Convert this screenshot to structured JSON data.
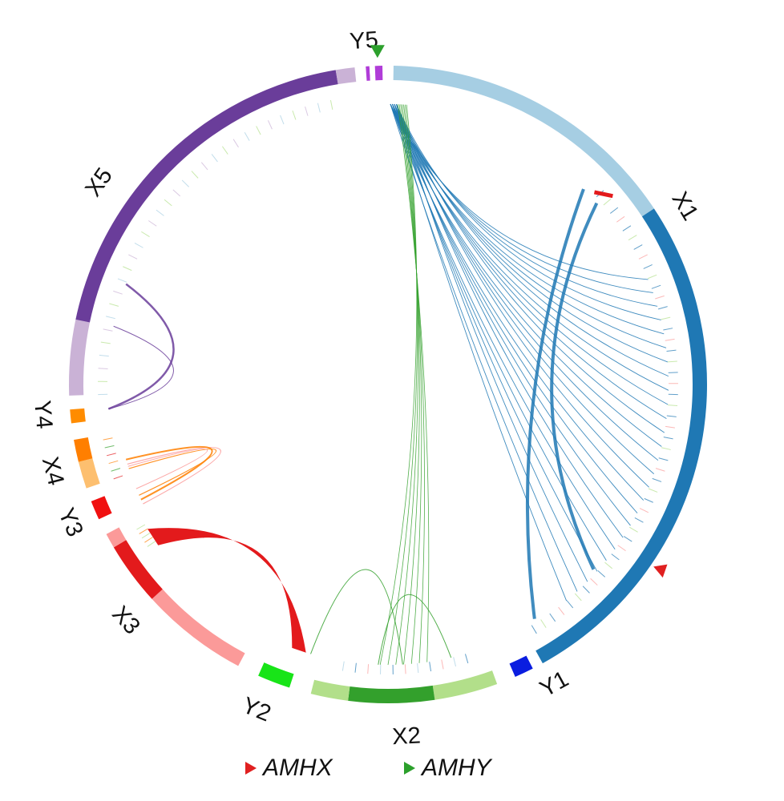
{
  "segments": [
    {
      "id": "X1",
      "label": "X1",
      "parts": [
        {
          "color": "#a6cee3",
          "frac": 0.37
        },
        {
          "color": "#1f78b4",
          "frac": 0.63
        }
      ]
    },
    {
      "id": "Y1",
      "label": "Y1",
      "parts": [
        {
          "color": "#0a1de0",
          "frac": 1
        }
      ]
    },
    {
      "id": "X2",
      "label": "X2",
      "parts": [
        {
          "color": "#b2df8a",
          "frac": 0.34
        },
        {
          "color": "#33a02c",
          "frac": 0.46
        },
        {
          "color": "#b2df8a",
          "frac": 0.2
        }
      ]
    },
    {
      "id": "Y2",
      "label": "Y2",
      "parts": [
        {
          "color": "#18e418",
          "frac": 1
        }
      ]
    },
    {
      "id": "X3",
      "label": "X3",
      "parts": [
        {
          "color": "#fb9a99",
          "frac": 0.58
        },
        {
          "color": "#e31a1c",
          "frac": 0.34
        },
        {
          "color": "#fb9a99",
          "frac": 0.08
        }
      ]
    },
    {
      "id": "Y3",
      "label": "Y3",
      "parts": [
        {
          "color": "#f01010",
          "frac": 1
        }
      ]
    },
    {
      "id": "X4",
      "label": "X4",
      "parts": [
        {
          "color": "#fdbf6f",
          "frac": 0.55
        },
        {
          "color": "#ff7f00",
          "frac": 0.45
        }
      ]
    },
    {
      "id": "Y4",
      "label": "Y4",
      "parts": [
        {
          "color": "#ff8c00",
          "frac": 1
        }
      ]
    },
    {
      "id": "X5",
      "label": "X5",
      "parts": [
        {
          "color": "#cab2d6",
          "frac": 0.16
        },
        {
          "color": "#6a3d9a",
          "frac": 0.8
        },
        {
          "color": "#cab2d6",
          "frac": 0.04
        }
      ]
    },
    {
      "id": "Y5",
      "label": "Y5",
      "parts": [
        {
          "color": "#b03cd8",
          "frac": 0.22
        },
        {
          "color": "#ffffff",
          "frac": 0.33
        },
        {
          "color": "#b03cd8",
          "frac": 0.45
        }
      ]
    }
  ],
  "markers": [
    {
      "name": "AMHX",
      "segment": "X1",
      "color": "#e02020"
    },
    {
      "name": "AMHY",
      "segment": "Y5",
      "color": "#2ca02c"
    }
  ],
  "legend": [
    {
      "label": "AMHX",
      "color": "#e02020"
    },
    {
      "label": "AMHY",
      "color": "#2ca02c"
    }
  ],
  "link_colors": {
    "x1": "#1f78b4",
    "x2": "#33a02c",
    "x3": "#e31a1c",
    "x4": "#ff7f00",
    "x4b": "#fb9a99",
    "x5": "#6a3d9a"
  }
}
